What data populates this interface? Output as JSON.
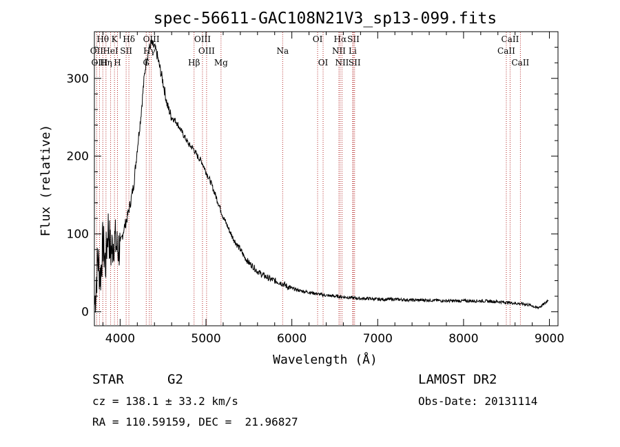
{
  "chart_data": {
    "type": "line",
    "title": "spec-56611-GAC108N21V3_sp13-099.fits",
    "xlabel": "Wavelength (Å)",
    "ylabel": "Flux (relative)",
    "xlim": [
      3700,
      9100
    ],
    "ylim": [
      -18,
      360
    ],
    "x_ticks": [
      4000,
      5000,
      6000,
      7000,
      8000,
      9000
    ],
    "x_tick_labels": [
      "4000",
      "5000",
      "6000",
      "7000",
      "8000",
      "9000"
    ],
    "y_ticks": [
      0,
      100,
      200,
      300
    ],
    "y_tick_labels": [
      "0",
      "100",
      "200",
      "300"
    ],
    "grid": false,
    "series": [
      {
        "x": [
          3705,
          3740,
          3770,
          3800,
          3830,
          3860,
          3890,
          3930,
          3970,
          4000,
          4040,
          4080,
          4120,
          4160,
          4200,
          4240,
          4280,
          4300,
          4330,
          4360,
          4400,
          4430,
          4460,
          4500,
          4550,
          4600,
          4650,
          4700,
          4750,
          4800,
          4850,
          4900,
          4950,
          5000,
          5050,
          5100,
          5150,
          5200,
          5250,
          5300,
          5350,
          5400,
          5450,
          5500,
          5550,
          5600,
          5650,
          5700,
          5750,
          5800,
          5850,
          5900,
          5950,
          6000,
          6100,
          6200,
          6300,
          6400,
          6500,
          6600,
          6700,
          6800,
          6900,
          7000,
          7200,
          7400,
          7600,
          7800,
          8000,
          8200,
          8400,
          8500,
          8600,
          8700,
          8800,
          8850,
          8900,
          8950,
          8990
        ],
        "values": [
          10,
          70,
          45,
          90,
          60,
          110,
          75,
          95,
          80,
          85,
          105,
          120,
          140,
          165,
          210,
          250,
          300,
          320,
          335,
          345,
          340,
          330,
          315,
          295,
          265,
          250,
          245,
          235,
          225,
          215,
          210,
          200,
          193,
          180,
          168,
          153,
          138,
          122,
          110,
          98,
          88,
          80,
          70,
          63,
          58,
          52,
          48,
          45,
          42,
          40,
          38,
          36,
          32,
          30,
          27,
          25,
          23,
          21,
          20,
          19,
          18,
          17,
          17,
          16,
          16,
          15,
          15,
          14,
          14,
          14,
          13,
          12,
          11,
          10,
          8,
          5,
          7,
          11,
          16
        ]
      }
    ],
    "line_markers": [
      {
        "label": "Hθ",
        "wavelength": 3798,
        "row": 1
      },
      {
        "label": "OII",
        "wavelength": 3727,
        "row": 2
      },
      {
        "label": "OIII",
        "wavelength": 3760,
        "row": 3
      },
      {
        "label": "HeI",
        "wavelength": 3889,
        "row": 2
      },
      {
        "label": "K",
        "wavelength": 3934,
        "row": 1
      },
      {
        "label": "Hη",
        "wavelength": 3835,
        "row": 3
      },
      {
        "label": "SII",
        "wavelength": 4070,
        "row": 2
      },
      {
        "label": "H",
        "wavelength": 3969,
        "row": 3
      },
      {
        "label": "Hδ",
        "wavelength": 4102,
        "row": 1
      },
      {
        "label": "OIII",
        "wavelength": 4363,
        "row": 1
      },
      {
        "label": "Hγ",
        "wavelength": 4340,
        "row": 2
      },
      {
        "label": "G",
        "wavelength": 4304,
        "row": 3
      },
      {
        "label": "OIII",
        "wavelength": 4959,
        "row": 1
      },
      {
        "label": "OIII",
        "wavelength": 5007,
        "row": 2
      },
      {
        "label": "Hβ",
        "wavelength": 4861,
        "row": 3
      },
      {
        "label": "Mg",
        "wavelength": 5175,
        "row": 3
      },
      {
        "label": "Na",
        "wavelength": 5893,
        "row": 2
      },
      {
        "label": "OI",
        "wavelength": 6300,
        "row": 1
      },
      {
        "label": "OI",
        "wavelength": 6364,
        "row": 3
      },
      {
        "label": "Hα",
        "wavelength": 6563,
        "row": 1
      },
      {
        "label": "NII",
        "wavelength": 6548,
        "row": 2
      },
      {
        "label": "NII",
        "wavelength": 6584,
        "row": 3
      },
      {
        "label": "SII",
        "wavelength": 6717,
        "row": 1
      },
      {
        "label": "Li",
        "wavelength": 6708,
        "row": 2
      },
      {
        "label": "SII",
        "wavelength": 6731,
        "row": 3
      },
      {
        "label": "CaII",
        "wavelength": 8542,
        "row": 1
      },
      {
        "label": "CaII",
        "wavelength": 8498,
        "row": 2
      },
      {
        "label": "CaII",
        "wavelength": 8662,
        "row": 3
      }
    ],
    "marker_color": "#b22222",
    "line_color": "#000000"
  },
  "footer": {
    "object_class": "STAR",
    "subclass": "G2",
    "survey": "LAMOST DR2",
    "redshift": "cz = 138.1 ± 33.2 km/s",
    "obs_date": "Obs-Date: 20131114",
    "coords": "RA = 110.59159, DEC =  21.96827"
  }
}
